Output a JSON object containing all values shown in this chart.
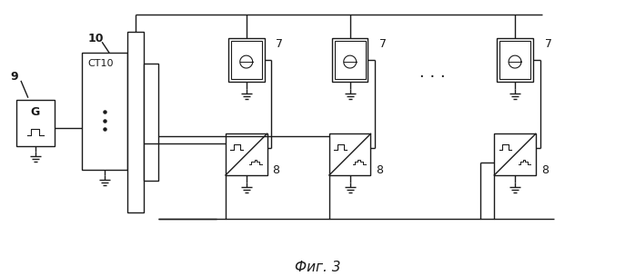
{
  "bg": "#ffffff",
  "lc": "#1a1a1a",
  "title": "Фиг. 3",
  "lbl_9": "9",
  "lbl_10": "10",
  "lbl_G": "G",
  "lbl_CT10": "CT10",
  "lbl_7": "7",
  "lbl_8": "8",
  "lbl_dots": ". . .",
  "title_fs": 11,
  "dpi": 100,
  "fig_w": 6.98,
  "fig_h": 3.04
}
